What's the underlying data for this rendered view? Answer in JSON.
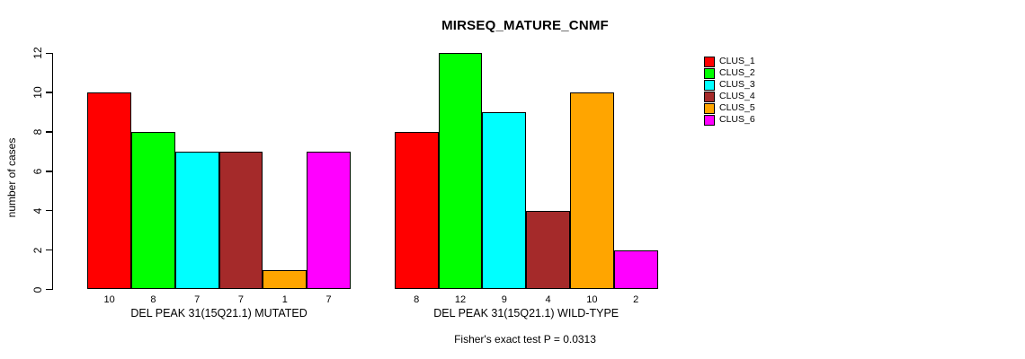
{
  "title": "MIRSEQ_MATURE_CNMF",
  "footer": "Fisher's exact test P = 0.0313",
  "colors": {
    "background": "#FFFFFF",
    "text": "#000000",
    "bar_border": "#000000"
  },
  "chart_data": {
    "type": "bar",
    "title": "MIRSEQ_MATURE_CNMF",
    "xlabel": "",
    "ylabel": "number of cases",
    "ylim": [
      0,
      12
    ],
    "yticks": [
      0,
      2,
      4,
      6,
      8,
      10,
      12
    ],
    "grid": false,
    "legend_position": "right",
    "categories": [
      "CLUS_1",
      "CLUS_2",
      "CLUS_3",
      "CLUS_4",
      "CLUS_5",
      "CLUS_6"
    ],
    "series_colors": [
      "#FF0000",
      "#00FF00",
      "#00FFFF",
      "#A52A2A",
      "#FFA500",
      "#FF00FF"
    ],
    "groups": [
      {
        "label": "DEL PEAK 31(15Q21.1) MUTATED",
        "values": [
          10,
          8,
          7,
          7,
          1,
          7
        ]
      },
      {
        "label": "DEL PEAK 31(15Q21.1) WILD-TYPE",
        "values": [
          8,
          12,
          9,
          4,
          10,
          2
        ]
      }
    ],
    "bar_value_labels_shown": true,
    "annotation": "Fisher's exact test P = 0.0313",
    "legend": [
      {
        "label": "CLUS_1",
        "color": "#FF0000"
      },
      {
        "label": "CLUS_2",
        "color": "#00FF00"
      },
      {
        "label": "CLUS_3",
        "color": "#00FFFF"
      },
      {
        "label": "CLUS_4",
        "color": "#A52A2A"
      },
      {
        "label": "CLUS_5",
        "color": "#FFA500"
      },
      {
        "label": "CLUS_6",
        "color": "#FF00FF"
      }
    ]
  }
}
